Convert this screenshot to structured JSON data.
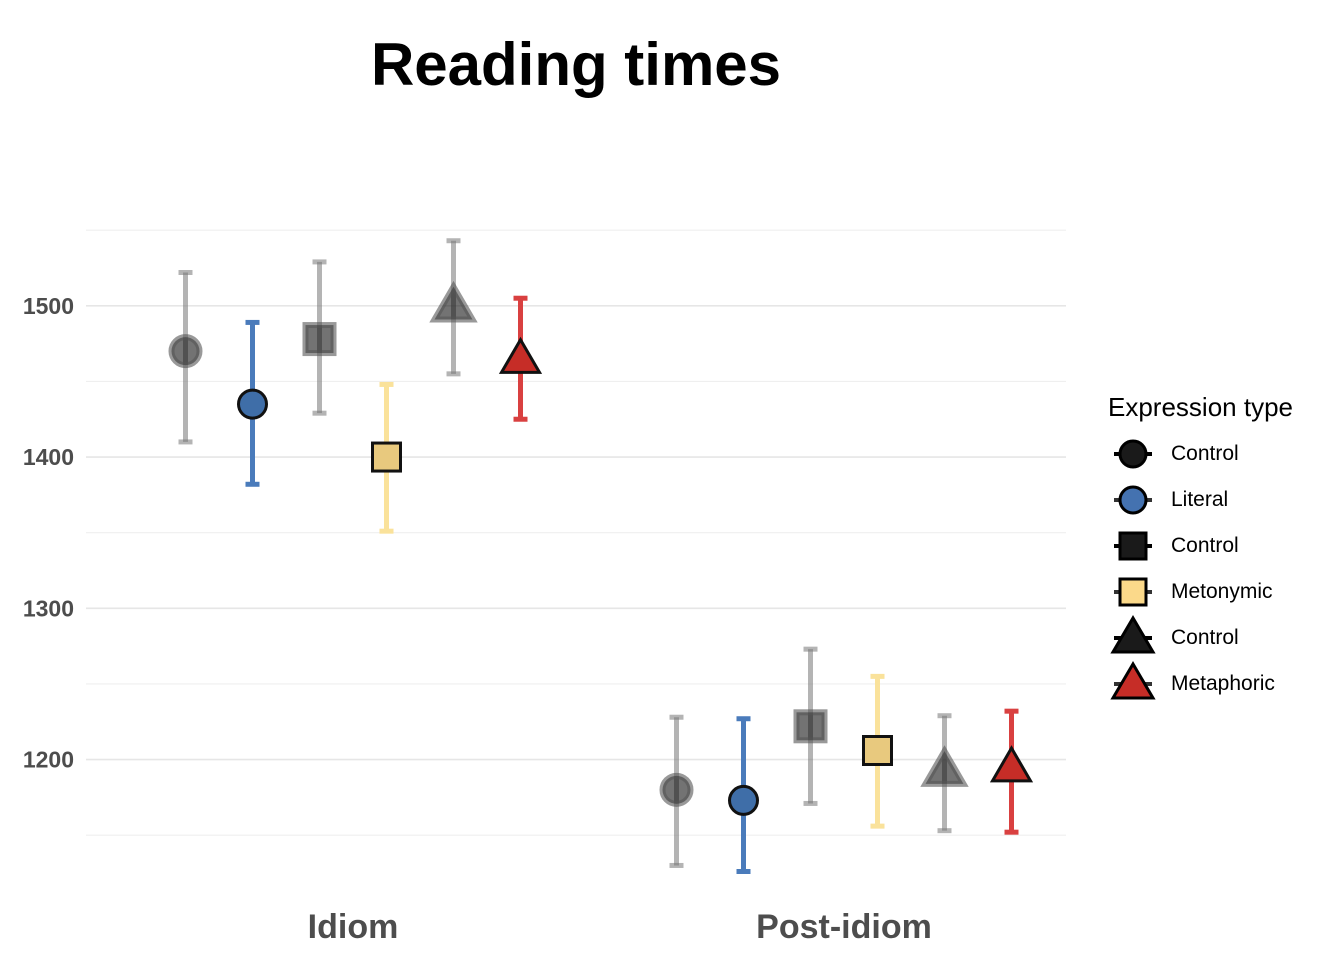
{
  "chart_data": {
    "type": "scatter",
    "title": "Reading times",
    "xlabel": "",
    "ylabel": "",
    "categories": [
      "Idiom",
      "Post-idiom"
    ],
    "ylim": [
      1127,
      1562
    ],
    "y_ticks": [
      1200,
      1300,
      1400,
      1500
    ],
    "y_tick_labels": [
      "1200",
      "1300",
      "1400",
      "1500"
    ],
    "grid": true,
    "legend": {
      "title": "Expression type",
      "placement": "right",
      "items": [
        {
          "label": "Control",
          "shape": "circle",
          "fill": "#1a1a1a"
        },
        {
          "label": "Literal",
          "shape": "circle",
          "fill": "#4472b0"
        },
        {
          "label": "Control",
          "shape": "square",
          "fill": "#1a1a1a"
        },
        {
          "label": "Metonymic",
          "shape": "square",
          "fill": "#fbd98a"
        },
        {
          "label": "Control",
          "shape": "triangle",
          "fill": "#1a1a1a"
        },
        {
          "label": "Metaphoric",
          "shape": "triangle",
          "fill": "#c62d27"
        }
      ]
    },
    "series": [
      {
        "label": "Control",
        "shape": "circle",
        "color": "#000000",
        "bar_color": "#777777",
        "opacity": 0.55,
        "values": [
          1470,
          1180
        ],
        "lower": [
          1410,
          1130
        ],
        "upper": [
          1522,
          1228
        ]
      },
      {
        "label": "Literal",
        "shape": "circle",
        "color": "#3f6ea8",
        "bar_color": "#4a7bbb",
        "opacity": 1,
        "values": [
          1435,
          1173
        ],
        "lower": [
          1382,
          1126
        ],
        "upper": [
          1489,
          1227
        ]
      },
      {
        "label": "Control",
        "shape": "square",
        "color": "#000000",
        "bar_color": "#777777",
        "opacity": 0.55,
        "values": [
          1478,
          1222
        ],
        "lower": [
          1429,
          1171
        ],
        "upper": [
          1529,
          1273
        ]
      },
      {
        "label": "Metonymic",
        "shape": "square",
        "color": "#e8c97e",
        "bar_color": "#fae29b",
        "opacity": 1,
        "values": [
          1400,
          1206
        ],
        "lower": [
          1351,
          1156
        ],
        "upper": [
          1448,
          1255
        ]
      },
      {
        "label": "Control",
        "shape": "triangle",
        "color": "#000000",
        "bar_color": "#777777",
        "opacity": 0.55,
        "values": [
          1500,
          1193
        ],
        "lower": [
          1455,
          1153
        ],
        "upper": [
          1543,
          1229
        ]
      },
      {
        "label": "Metaphoric",
        "shape": "triangle",
        "color": "#c62d27",
        "bar_color": "#d94040",
        "opacity": 1,
        "values": [
          1465,
          1195
        ],
        "lower": [
          1425,
          1152
        ],
        "upper": [
          1505,
          1232
        ]
      }
    ]
  }
}
